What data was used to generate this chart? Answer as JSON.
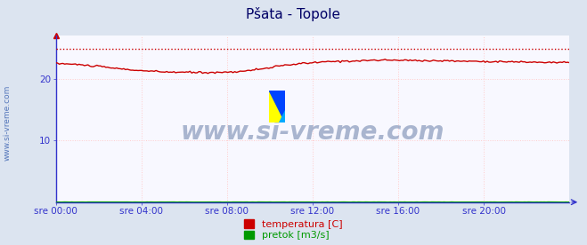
{
  "title": "Pšata - Topole",
  "title_fontsize": 11,
  "bg_color": "#dce4f0",
  "plot_bg_color": "#f8f8ff",
  "x_label_color": "#0000cc",
  "y_label_color": "#444444",
  "watermark_text": "www.si-vreme.com",
  "side_text": "www.si-vreme.com",
  "x_ticks": [
    "sre 00:00",
    "sre 04:00",
    "sre 08:00",
    "sre 12:00",
    "sre 16:00",
    "sre 20:00"
  ],
  "x_tick_positions": [
    0,
    4,
    8,
    12,
    16,
    20
  ],
  "y_ticks": [
    10,
    20
  ],
  "ylim": [
    0,
    27
  ],
  "xlim": [
    0,
    24
  ],
  "temp_color": "#cc0000",
  "flow_color": "#009900",
  "legend_labels": [
    "temperatura [C]",
    "pretok [m3/s]"
  ],
  "legend_colors": [
    "#cc0000",
    "#009900"
  ],
  "border_color": "#3333cc",
  "grid_color": "#ffcccc",
  "temp_max": 24.8,
  "temp_shape": [
    22.5,
    22.3,
    22.0,
    21.6,
    21.3,
    21.1,
    21.05,
    21.0,
    21.05,
    21.3,
    21.8,
    22.3,
    22.6,
    22.8,
    22.9,
    23.0,
    23.0,
    22.95,
    22.9,
    22.85,
    22.8,
    22.75,
    22.7,
    22.65,
    22.6
  ]
}
